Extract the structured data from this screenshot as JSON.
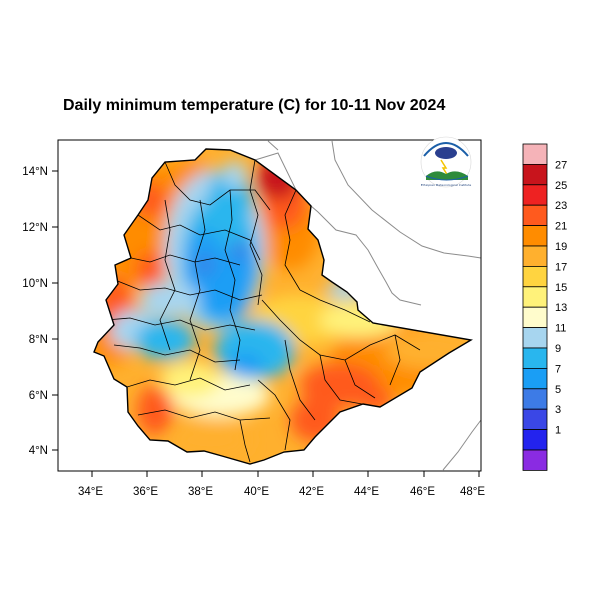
{
  "title": "Daily minimum temperature (C) for 10-11 Nov 2024",
  "x_ticks": [
    "34°E",
    "36°E",
    "38°E",
    "40°E",
    "42°E",
    "44°E",
    "46°E",
    "48°E"
  ],
  "y_ticks": [
    "14°N",
    "12°N",
    "10°N",
    "8°N",
    "6°N",
    "4°N"
  ],
  "colorbar": {
    "labels": [
      "27",
      "25",
      "23",
      "21",
      "19",
      "17",
      "15",
      "13",
      "11",
      "9",
      "7",
      "5",
      "3",
      "1"
    ],
    "colors": [
      "#f5b3b8",
      "#c8141c",
      "#ee2222",
      "#ff5a1e",
      "#ff8c00",
      "#ffb02e",
      "#ffd440",
      "#fff27a",
      "#fffccc",
      "#a7d5ef",
      "#29b6ee",
      "#1a9ef5",
      "#3d7be6",
      "#3a47e6",
      "#2323ee",
      "#8a2be2"
    ]
  },
  "map": {
    "lon_range": [
      33,
      48.2
    ],
    "lat_range": [
      3.2,
      14.9
    ],
    "colors": {
      "hot": "#ff5a1e",
      "warm": "#ff8c00",
      "yellow": "#ffd440",
      "cool": "#fffccc",
      "light_blue": "#a7d5ef",
      "blue": "#1a9ef5",
      "dark_red": "#c8141c"
    }
  },
  "logo": {
    "text": "Ethiopian Meteorological Institute"
  }
}
